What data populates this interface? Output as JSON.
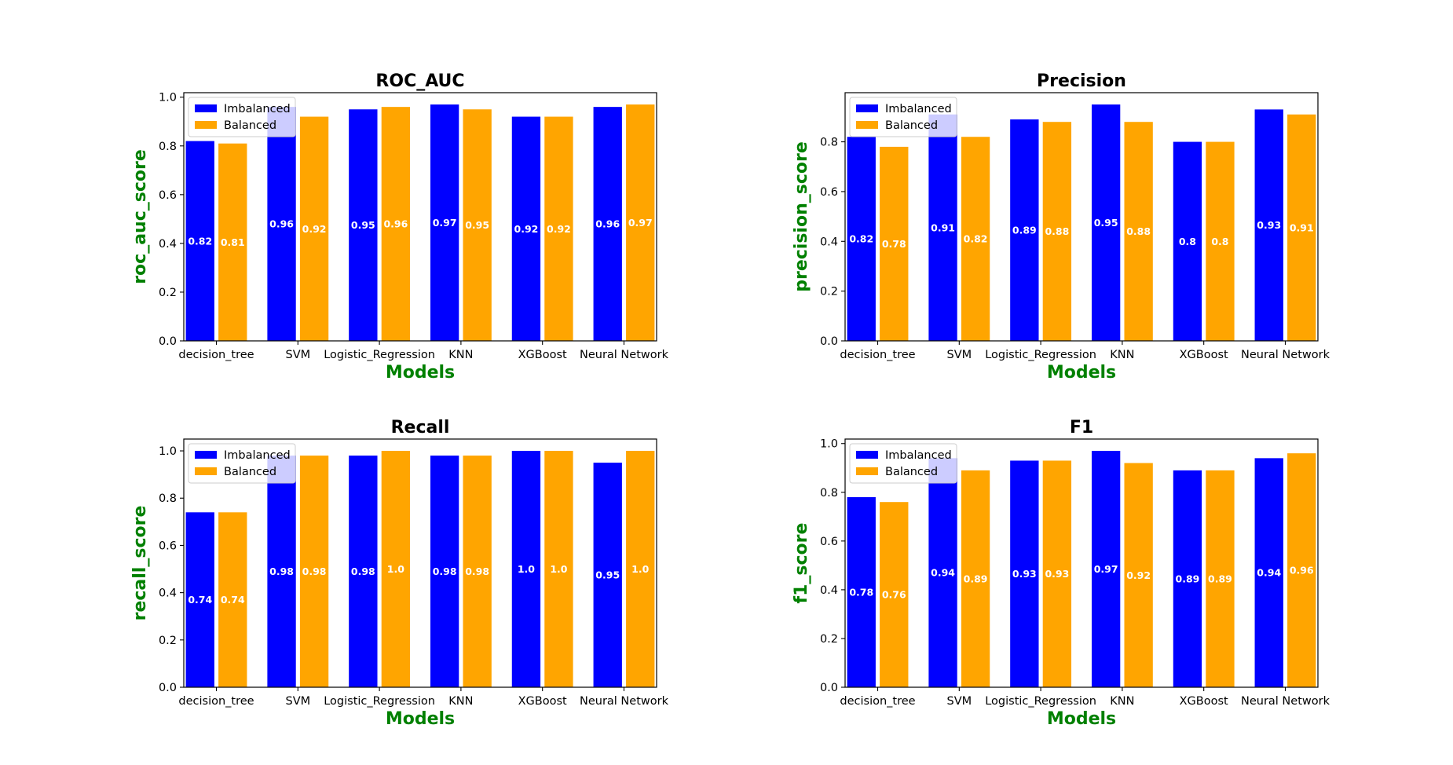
{
  "chart_data": [
    {
      "type": "bar",
      "title": "ROC_AUC",
      "xlabel": "Models",
      "ylabel": "roc_auc_score",
      "categories": [
        "decision_tree",
        "SVM",
        "Logistic_Regression",
        "KNN",
        "XGBoost",
        "Neural Network"
      ],
      "series": [
        {
          "name": "Imbalanced",
          "color": "#0000ff",
          "values": [
            0.82,
            0.96,
            0.95,
            0.97,
            0.92,
            0.96
          ],
          "labels": [
            "0.82",
            "0.96",
            "0.95",
            "0.97",
            "0.92",
            "0.96"
          ]
        },
        {
          "name": "Balanced",
          "color": "#ffa500",
          "values": [
            0.81,
            0.92,
            0.96,
            0.95,
            0.92,
            0.97
          ],
          "labels": [
            "0.81",
            "0.92",
            "0.96",
            "0.95",
            "0.92",
            "0.97"
          ]
        }
      ],
      "ylim": [
        0,
        1.0185
      ],
      "yticks": [
        "0.0",
        "0.2",
        "0.4",
        "0.6",
        "0.8",
        "1.0"
      ],
      "legend": "upper-left",
      "grid": false
    },
    {
      "type": "bar",
      "title": "Precision",
      "xlabel": "Models",
      "ylabel": "precision_score",
      "categories": [
        "decision_tree",
        "SVM",
        "Logistic_Regression",
        "KNN",
        "XGBoost",
        "Neural Network"
      ],
      "series": [
        {
          "name": "Imbalanced",
          "color": "#0000ff",
          "values": [
            0.82,
            0.91,
            0.89,
            0.95,
            0.8,
            0.93
          ],
          "labels": [
            "0.82",
            "0.91",
            "0.89",
            "0.95",
            "0.8",
            "0.93"
          ]
        },
        {
          "name": "Balanced",
          "color": "#ffa500",
          "values": [
            0.78,
            0.82,
            0.88,
            0.88,
            0.8,
            0.91
          ],
          "labels": [
            "0.78",
            "0.82",
            "0.88",
            "0.88",
            "0.8",
            "0.91"
          ]
        }
      ],
      "ylim": [
        0,
        0.9975
      ],
      "yticks": [
        "0.0",
        "0.2",
        "0.4",
        "0.6",
        "0.8"
      ],
      "legend": "upper-left",
      "grid": false
    },
    {
      "type": "bar",
      "title": "Recall",
      "xlabel": "Models",
      "ylabel": "recall_score",
      "categories": [
        "decision_tree",
        "SVM",
        "Logistic_Regression",
        "KNN",
        "XGBoost",
        "Neural Network"
      ],
      "series": [
        {
          "name": "Imbalanced",
          "color": "#0000ff",
          "values": [
            0.74,
            0.98,
            0.98,
            0.98,
            1.0,
            0.95
          ],
          "labels": [
            "0.74",
            "0.98",
            "0.98",
            "0.98",
            "1.0",
            "0.95"
          ]
        },
        {
          "name": "Balanced",
          "color": "#ffa500",
          "values": [
            0.74,
            0.98,
            1.0,
            0.98,
            1.0,
            1.0
          ],
          "labels": [
            "0.74",
            "0.98",
            "1.0",
            "0.98",
            "1.0",
            "1.0"
          ]
        }
      ],
      "ylim": [
        0,
        1.05
      ],
      "yticks": [
        "0.0",
        "0.2",
        "0.4",
        "0.6",
        "0.8",
        "1.0"
      ],
      "legend": "upper-left",
      "grid": false
    },
    {
      "type": "bar",
      "title": "F1",
      "xlabel": "Models",
      "ylabel": "f1_score",
      "categories": [
        "decision_tree",
        "SVM",
        "Logistic_Regression",
        "KNN",
        "XGBoost",
        "Neural Network"
      ],
      "series": [
        {
          "name": "Imbalanced",
          "color": "#0000ff",
          "values": [
            0.78,
            0.94,
            0.93,
            0.97,
            0.89,
            0.94
          ],
          "labels": [
            "0.78",
            "0.94",
            "0.93",
            "0.97",
            "0.89",
            "0.94"
          ]
        },
        {
          "name": "Balanced",
          "color": "#ffa500",
          "values": [
            0.76,
            0.89,
            0.93,
            0.92,
            0.89,
            0.96
          ],
          "labels": [
            "0.76",
            "0.89",
            "0.93",
            "0.92",
            "0.89",
            "0.96"
          ]
        }
      ],
      "ylim": [
        0,
        1.0185
      ],
      "yticks": [
        "0.0",
        "0.2",
        "0.4",
        "0.6",
        "0.8",
        "1.0"
      ],
      "legend": "upper-left",
      "grid": false
    }
  ]
}
